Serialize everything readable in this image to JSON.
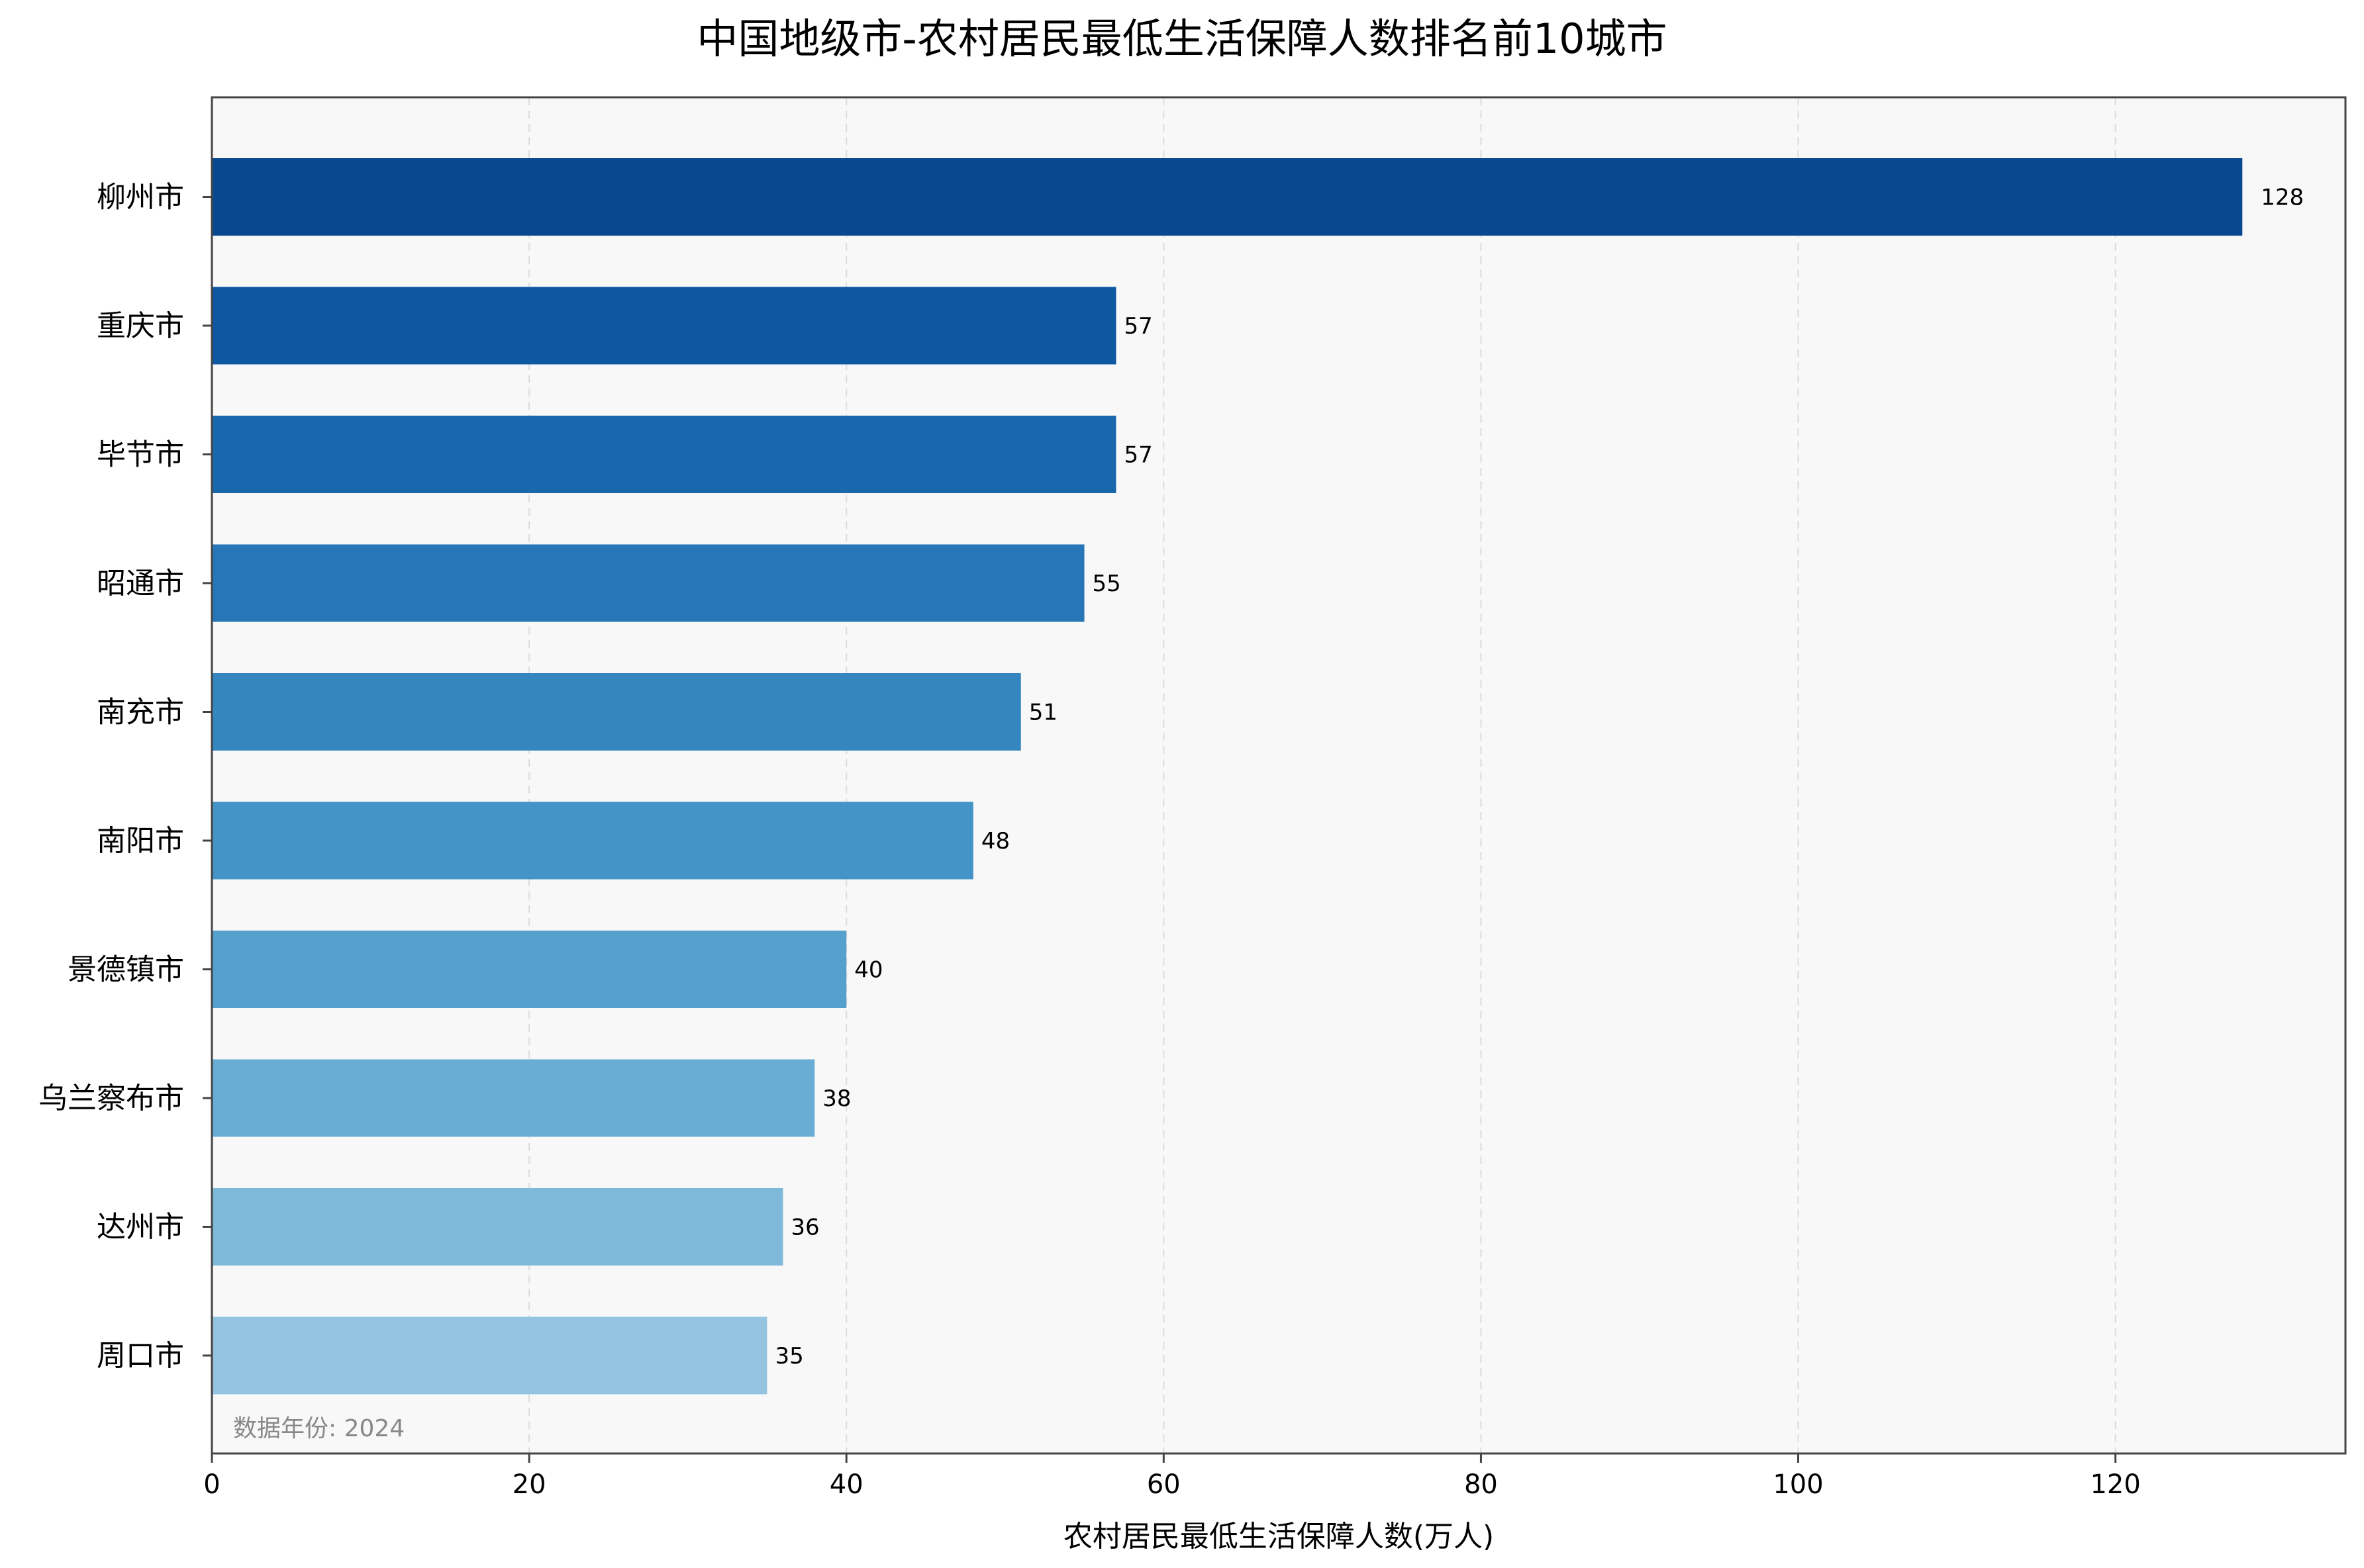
{
  "chart_data": {
    "type": "bar",
    "orientation": "horizontal",
    "title": "中国地级市-农村居民最低生活保障人数排名前10城市",
    "xlabel": "农村居民最低生活保障人数(万人)",
    "ylabel": "",
    "categories": [
      "柳州市",
      "重庆市",
      "毕节市",
      "昭通市",
      "南充市",
      "南阳市",
      "景德镇市",
      "乌兰察布市",
      "达州市",
      "周口市"
    ],
    "values": [
      128,
      57,
      57,
      55,
      51,
      48,
      40,
      38,
      36,
      35
    ],
    "value_labels": [
      "128",
      "57",
      "57",
      "55",
      "51",
      "48",
      "40",
      "38",
      "36",
      "35"
    ],
    "xlim": [
      0,
      134.5
    ],
    "xticks": [
      0,
      20,
      40,
      60,
      80,
      100,
      120
    ],
    "grid": {
      "x": true,
      "y": false,
      "style": "dashed"
    },
    "note": "数据年份: 2024",
    "colors": {
      "bars": [
        "#08488e",
        "#0e58a2",
        "#1967ad",
        "#2676b8",
        "#3585bf",
        "#4594c7",
        "#56a0ce",
        "#69add5",
        "#7fb9da",
        "#94c4df"
      ],
      "plot_background": "#f8f8f8",
      "grid": "#dcdcdc",
      "axis": "#444444",
      "note": "#888888"
    }
  }
}
